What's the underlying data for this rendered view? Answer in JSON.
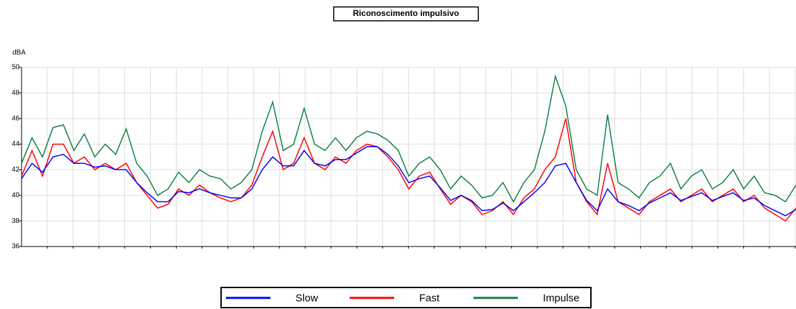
{
  "chart_data": {
    "type": "line",
    "title": "Riconoscimento impulsivo",
    "y_label": "dBA",
    "ylim": [
      36,
      50
    ],
    "yticks": [
      36,
      38,
      40,
      42,
      44,
      46,
      48,
      50
    ],
    "grid": true,
    "legend": "bottom",
    "series": [
      {
        "name": "Impulse",
        "color": "#108040",
        "values": [
          42.5,
          44.5,
          43,
          45.3,
          45.5,
          43.5,
          44.8,
          43,
          44,
          43.2,
          45.2,
          42.5,
          41.5,
          40,
          40.5,
          41.8,
          41,
          42,
          41.5,
          41.3,
          40.5,
          41,
          42,
          45,
          47.3,
          43.5,
          44,
          46.8,
          44,
          43.5,
          44.5,
          43.5,
          44.5,
          45,
          44.8,
          44.3,
          43.5,
          41.5,
          42.5,
          43,
          42,
          40.5,
          41.5,
          40.8,
          39.8,
          40,
          41,
          39.5,
          41,
          42,
          45,
          49.3,
          47,
          42,
          40.5,
          40,
          46.3,
          41,
          40.5,
          39.8,
          41,
          41.5,
          42.5,
          40.5,
          41.5,
          42,
          40.5,
          41,
          42,
          40.5,
          41.5,
          40.2,
          40,
          39.5,
          40.8
        ]
      },
      {
        "name": "Fast",
        "color": "#ff0000",
        "values": [
          41.5,
          43.5,
          41.5,
          44,
          44,
          42.5,
          43,
          42,
          42.5,
          42,
          42.5,
          41,
          40,
          39,
          39.3,
          40.5,
          40,
          40.8,
          40.2,
          39.8,
          39.5,
          39.8,
          40.8,
          43,
          45,
          42,
          42.5,
          44.5,
          42.5,
          42,
          43,
          42.5,
          43.5,
          44,
          43.8,
          43,
          42,
          40.5,
          41.5,
          41.8,
          40.5,
          39.3,
          40,
          39.5,
          38.5,
          38.8,
          39.5,
          38.5,
          39.8,
          40.5,
          42,
          43,
          46,
          41,
          39.5,
          38.5,
          42.5,
          39.5,
          39,
          38.5,
          39.5,
          40,
          40.5,
          39.5,
          40,
          40.5,
          39.5,
          40,
          40.5,
          39.5,
          40,
          39,
          38.5,
          38,
          39
        ]
      },
      {
        "name": "Slow",
        "color": "#0000ff",
        "values": [
          41.3,
          42.5,
          41.8,
          43,
          43.2,
          42.5,
          42.5,
          42.2,
          42.3,
          42,
          42,
          41,
          40.2,
          39.5,
          39.5,
          40.3,
          40.2,
          40.5,
          40.2,
          40,
          39.8,
          39.8,
          40.5,
          42,
          43,
          42.3,
          42.3,
          43.5,
          42.5,
          42.3,
          42.8,
          42.8,
          43.3,
          43.8,
          43.8,
          43.2,
          42.3,
          41,
          41.3,
          41.5,
          40.6,
          39.6,
          40,
          39.6,
          38.8,
          38.9,
          39.4,
          38.8,
          39.5,
          40.2,
          41,
          42.3,
          42.5,
          41,
          39.6,
          38.8,
          40.5,
          39.5,
          39.2,
          38.8,
          39.4,
          39.8,
          40.2,
          39.6,
          39.9,
          40.2,
          39.6,
          39.9,
          40.2,
          39.6,
          39.8,
          39.2,
          38.8,
          38.4,
          38.9
        ]
      }
    ]
  }
}
